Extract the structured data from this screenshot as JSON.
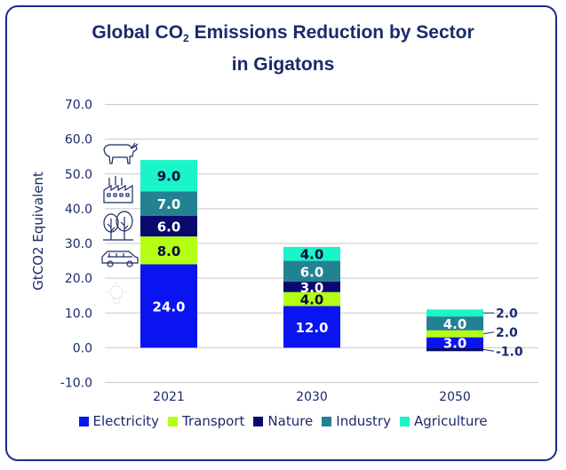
{
  "title_line1_a": "Global CO",
  "title_sub": "2",
  "title_line1_b": " Emissions Reduction by Sector",
  "title_line2": "in Gigatons",
  "colors": {
    "electricity": "#0a14f0",
    "transport": "#b4ff14",
    "nature": "#0a0a6e",
    "industry": "#238291",
    "agriculture": "#19f5c8",
    "axis_text": "#1b2a6b",
    "grid": "#c8c8c8"
  },
  "chart_data": {
    "type": "bar",
    "stacked": true,
    "ylabel": "GtCO2 Equivalent",
    "ylim": [
      -10,
      70
    ],
    "yticks": [
      "-10.0",
      "0.0",
      "10.0",
      "20.0",
      "30.0",
      "40.0",
      "50.0",
      "60.0",
      "70.0"
    ],
    "grid": true,
    "legend_position": "bottom",
    "categories": [
      "2021",
      "2030",
      "2050"
    ],
    "series": [
      {
        "name": "Electricity",
        "color_key": "electricity",
        "values": [
          24.0,
          12.0,
          3.0
        ],
        "labels": [
          "24.0",
          "12.0",
          "3.0"
        ]
      },
      {
        "name": "Transport",
        "color_key": "transport",
        "values": [
          8.0,
          4.0,
          2.0
        ],
        "labels": [
          "8.0",
          "4.0",
          "2.0"
        ]
      },
      {
        "name": "Nature",
        "color_key": "nature",
        "values": [
          6.0,
          3.0,
          -1.0
        ],
        "labels": [
          "6.0",
          "3.0",
          "-1.0"
        ]
      },
      {
        "name": "Industry",
        "color_key": "industry",
        "values": [
          7.0,
          6.0,
          4.0
        ],
        "labels": [
          "7.0",
          "6.0",
          "4.0"
        ]
      },
      {
        "name": "Agriculture",
        "color_key": "agriculture",
        "values": [
          9.0,
          4.0,
          2.0
        ],
        "labels": [
          "9.0",
          "4.0",
          "2.0"
        ]
      }
    ],
    "icons": [
      "cow-icon",
      "factory-icon",
      "trees-icon",
      "car-icon",
      "lightbulb-icon"
    ]
  }
}
